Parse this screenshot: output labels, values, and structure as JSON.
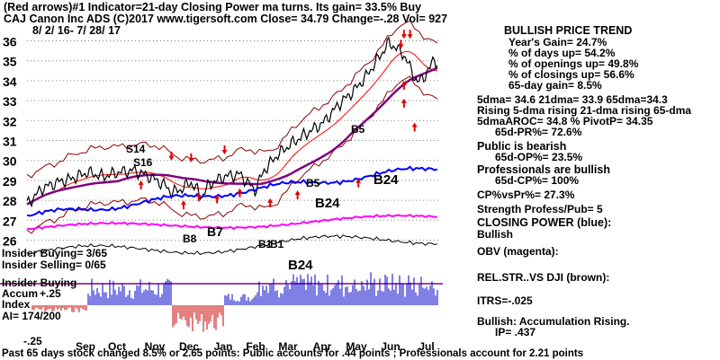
{
  "header": {
    "line1": "(Red arrows)#1 Indicator=21-day Closing Power ma turns. Its gain= 33.5% Buy",
    "line2": "CAJ   Canon Inc ADS  (C)2017 www.tigersoft.com    Close=  34.79  Change=-.28  Vol=  927",
    "date_range": "8/ 2/ 16-  7/ 28/ 17"
  },
  "sidebar": {
    "trend_title": "BULLISH PRICE TREND",
    "stats": [
      "Year's Gain= 24.7%",
      "% of days up= 54.2%",
      "% of openings up= 49.8%",
      "% of closings up= 56.6%",
      "65-day gain= 8.5%"
    ],
    "ma_line": "5dma= 34.6  21dma= 33.9  65dma=34.3",
    "rising_line": "Rising  5-dma  rising 21-dma  rising 65-dma",
    "aroc_line": "5dmaAROC= 34.8 %   PivotP= 34.35",
    "pr_line": "65d-PR%= 72.6%",
    "public_title": "Public is bearish",
    "public_stat": "65d-OP%= 23.5%",
    "pro_title": "Professionals are bullish",
    "pro_stat": "65d-CP%= 100%",
    "cp_vs_pr": "CP%vsPr%=  27.3%",
    "strength": "Strength Profess/Pub= 5",
    "closing_power_title": "CLOSING POWER (blue):",
    "closing_power_state": "Bullish",
    "obv": "OBV (magenta):",
    "relstr": "REL.STR..VS DJI (brown):",
    "itrs": "ITRS=-.025",
    "accum_line": "Bullish: Accumulation Rising.",
    "ip": "IP=  .437"
  },
  "indicator_labels": {
    "insider_buying_count": "Insider Buying= 3/65",
    "insider_selling": "Insider Selling= 0/65",
    "insider_buying": "Insider Buying",
    "accum": "Accum",
    "plus25": "+.25",
    "index": "Index",
    "ai": "AI= 174/200",
    "minus25": "-.25"
  },
  "footer": "Past 65 days stock changed  8.5% or  2.65 points:  Public accounts for  .44 points ;  Professionals account for  2.21 points",
  "colors": {
    "price": "#000000",
    "band": "#8b0000",
    "ma_red": "#ff0000",
    "ma_purple": "#800080",
    "closing_power": "#0000ff",
    "obv": "#ff00ff",
    "accum": "#0000c8",
    "grid": "#808080"
  },
  "chart_data": {
    "type": "line",
    "y_ticks": [
      26,
      27,
      28,
      29,
      30,
      31,
      32,
      33,
      34,
      35,
      36
    ],
    "ylim": [
      26.3,
      36.5
    ],
    "x_tick_labels": [
      "Sep",
      "Oct",
      "Nov",
      "Dec",
      "Jan",
      "Feb",
      "Mar",
      "Apr",
      "May",
      "Jun",
      "Jul"
    ],
    "close": 34.79,
    "price_series": [
      [
        0,
        27.8
      ],
      [
        10,
        28.6
      ],
      [
        20,
        28.9
      ],
      [
        30,
        29.1
      ],
      [
        40,
        29.4
      ],
      [
        50,
        29.2
      ],
      [
        60,
        29.4
      ],
      [
        70,
        29.5
      ],
      [
        80,
        29.2
      ],
      [
        90,
        28.8
      ],
      [
        95,
        28.4
      ],
      [
        100,
        28.5
      ],
      [
        108,
        28.9
      ],
      [
        115,
        28.2
      ],
      [
        120,
        28.8
      ],
      [
        130,
        29.2
      ],
      [
        140,
        29.3
      ],
      [
        150,
        28.5
      ],
      [
        156,
        29.5
      ],
      [
        165,
        30.3
      ],
      [
        175,
        30.9
      ],
      [
        185,
        31.4
      ],
      [
        195,
        31.9
      ],
      [
        205,
        32.8
      ],
      [
        215,
        33.5
      ],
      [
        222,
        34.1
      ],
      [
        230,
        35.0
      ],
      [
        238,
        35.9
      ],
      [
        242,
        35.7
      ],
      [
        248,
        35.3
      ],
      [
        253,
        34.5
      ],
      [
        257,
        33.9
      ],
      [
        261,
        34.2
      ],
      [
        265,
        34.6
      ],
      [
        268,
        35.2
      ],
      [
        270,
        34.79
      ]
    ],
    "annotations": [
      "S14",
      "S16",
      "B7",
      "B24",
      "B5",
      "B24",
      "B5",
      "B1",
      "B1",
      "B8",
      "B24"
    ]
  }
}
